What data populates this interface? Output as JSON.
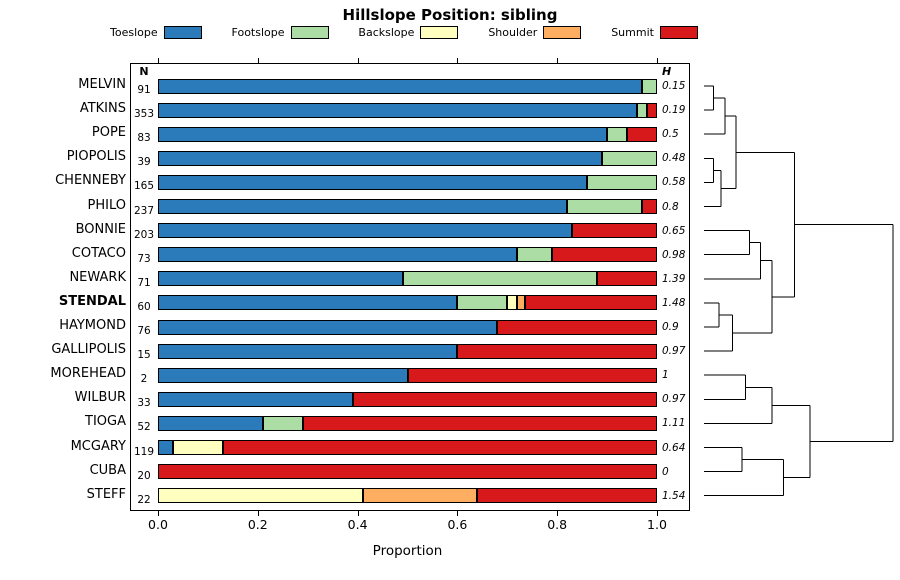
{
  "title": "Hillslope Position: sibling",
  "columns": {
    "n_header": "N",
    "h_header": "H"
  },
  "xlabel": "Proportion",
  "x_ticks": [
    "0.0",
    "0.2",
    "0.4",
    "0.6",
    "0.8",
    "1.0"
  ],
  "legend": [
    {
      "label": "Toeslope",
      "color": "#2b7bba"
    },
    {
      "label": "Footslope",
      "color": "#abdda4"
    },
    {
      "label": "Backslope",
      "color": "#ffffbf"
    },
    {
      "label": "Shoulder",
      "color": "#fdae61"
    },
    {
      "label": "Summit",
      "color": "#d7191c"
    }
  ],
  "chart_data": {
    "type": "bar",
    "stacked": true,
    "orientation": "horizontal",
    "title": "Hillslope Position: sibling",
    "xlabel": "Proportion",
    "xlim": [
      0,
      1
    ],
    "categories": [
      "Toeslope",
      "Footslope",
      "Backslope",
      "Shoulder",
      "Summit"
    ],
    "colors": [
      "#2b7bba",
      "#abdda4",
      "#ffffbf",
      "#fdae61",
      "#d7191c"
    ],
    "rows": [
      {
        "name": "MELVIN",
        "n": "91",
        "h": "0.15",
        "bold": false,
        "values": [
          0.97,
          0.03,
          0,
          0,
          0
        ]
      },
      {
        "name": "ATKINS",
        "n": "353",
        "h": "0.19",
        "bold": false,
        "values": [
          0.96,
          0.02,
          0,
          0,
          0.02
        ]
      },
      {
        "name": "POPE",
        "n": "83",
        "h": "0.5",
        "bold": false,
        "values": [
          0.9,
          0.04,
          0,
          0,
          0.06
        ]
      },
      {
        "name": "PIOPOLIS",
        "n": "39",
        "h": "0.48",
        "bold": false,
        "values": [
          0.89,
          0.11,
          0,
          0,
          0
        ]
      },
      {
        "name": "CHENNEBY",
        "n": "165",
        "h": "0.58",
        "bold": false,
        "values": [
          0.86,
          0.14,
          0,
          0,
          0
        ]
      },
      {
        "name": "PHILO",
        "n": "237",
        "h": "0.8",
        "bold": false,
        "values": [
          0.82,
          0.15,
          0,
          0,
          0.03
        ]
      },
      {
        "name": "BONNIE",
        "n": "203",
        "h": "0.65",
        "bold": false,
        "values": [
          0.83,
          0,
          0,
          0,
          0.17
        ]
      },
      {
        "name": "COTACO",
        "n": "73",
        "h": "0.98",
        "bold": false,
        "values": [
          0.72,
          0.07,
          0,
          0,
          0.21
        ]
      },
      {
        "name": "NEWARK",
        "n": "71",
        "h": "1.39",
        "bold": false,
        "values": [
          0.49,
          0.39,
          0,
          0,
          0.12
        ]
      },
      {
        "name": "STENDAL",
        "n": "60",
        "h": "1.48",
        "bold": true,
        "values": [
          0.6,
          0.1,
          0.02,
          0.015,
          0.265
        ]
      },
      {
        "name": "HAYMOND",
        "n": "76",
        "h": "0.9",
        "bold": false,
        "values": [
          0.68,
          0,
          0,
          0,
          0.32
        ]
      },
      {
        "name": "GALLIPOLIS",
        "n": "15",
        "h": "0.97",
        "bold": false,
        "values": [
          0.6,
          0,
          0,
          0,
          0.4
        ]
      },
      {
        "name": "MOREHEAD",
        "n": "2",
        "h": "1",
        "bold": false,
        "values": [
          0.5,
          0,
          0,
          0,
          0.5
        ]
      },
      {
        "name": "WILBUR",
        "n": "33",
        "h": "0.97",
        "bold": false,
        "values": [
          0.39,
          0,
          0,
          0,
          0.61
        ]
      },
      {
        "name": "TIOGA",
        "n": "52",
        "h": "1.11",
        "bold": false,
        "values": [
          0.21,
          0.08,
          0,
          0,
          0.71
        ]
      },
      {
        "name": "MCGARY",
        "n": "119",
        "h": "0.64",
        "bold": false,
        "values": [
          0.03,
          0,
          0.1,
          0,
          0.87
        ]
      },
      {
        "name": "CUBA",
        "n": "20",
        "h": "0",
        "bold": false,
        "values": [
          0,
          0,
          0,
          0,
          1
        ]
      },
      {
        "name": "STEFF",
        "n": "22",
        "h": "1.54",
        "bold": false,
        "values": [
          0,
          0,
          0.41,
          0.23,
          0.36
        ]
      }
    ]
  },
  "dendrogram": {
    "merges": [
      {
        "a": "L0",
        "b": "L1",
        "h": 0.05
      },
      {
        "a": "M0",
        "b": "L2",
        "h": 0.11
      },
      {
        "a": "L3",
        "b": "L4",
        "h": 0.05
      },
      {
        "a": "M2",
        "b": "L5",
        "h": 0.09
      },
      {
        "a": "M1",
        "b": "M3",
        "h": 0.17
      },
      {
        "a": "L6",
        "b": "L7",
        "h": 0.24
      },
      {
        "a": "M5",
        "b": "L8",
        "h": 0.3
      },
      {
        "a": "L9",
        "b": "L10",
        "h": 0.08
      },
      {
        "a": "M7",
        "b": "L11",
        "h": 0.15
      },
      {
        "a": "M6",
        "b": "M8",
        "h": 0.36
      },
      {
        "a": "M4",
        "b": "M9",
        "h": 0.48
      },
      {
        "a": "L12",
        "b": "L13",
        "h": 0.22
      },
      {
        "a": "M11",
        "b": "L14",
        "h": 0.36
      },
      {
        "a": "L15",
        "b": "L16",
        "h": 0.2
      },
      {
        "a": "M13",
        "b": "L17",
        "h": 0.42
      },
      {
        "a": "M12",
        "b": "M14",
        "h": 0.56
      },
      {
        "a": "M10",
        "b": "M15",
        "h": 1.0
      }
    ]
  }
}
